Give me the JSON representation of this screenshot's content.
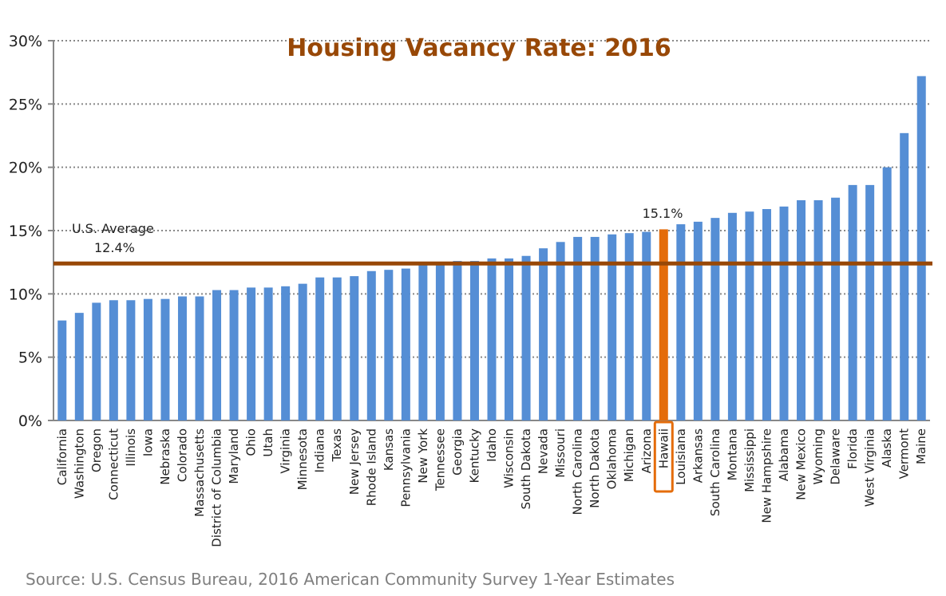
{
  "chart_data": {
    "type": "bar",
    "title": "Housing Vacancy Rate: 2016",
    "source": "Source: U.S. Census Bureau, 2016 American Community Survey 1-Year Estimates",
    "ylim": [
      0,
      30
    ],
    "yticks": [
      "0%",
      "5%",
      "10%",
      "15%",
      "20%",
      "25%",
      "30%"
    ],
    "grid": true,
    "categories": [
      "California",
      "Washington",
      "Oregon",
      "Connecticut",
      "Illinois",
      "Iowa",
      "Nebraska",
      "Colorado",
      "Massachusetts",
      "District of Columbia",
      "Maryland",
      "Ohio",
      "Utah",
      "Virginia",
      "Minnesota",
      "Indiana",
      "Texas",
      "New Jersey",
      "Rhode Island",
      "Kansas",
      "Pennsylvania",
      "New York",
      "Tennessee",
      "Georgia",
      "Kentucky",
      "Idaho",
      "Wisconsin",
      "South Dakota",
      "Nevada",
      "Missouri",
      "North Carolina",
      "North Dakota",
      "Oklahoma",
      "Michigan",
      "Arizona",
      "Hawaii",
      "Louisiana",
      "Arkansas",
      "South Carolina",
      "Montana",
      "Mississippi",
      "New Hampshire",
      "Alabama",
      "New Mexico",
      "Wyoming",
      "Delaware",
      "Florida",
      "West Virginia",
      "Alaska",
      "Vermont",
      "Maine"
    ],
    "values": [
      7.9,
      8.5,
      9.3,
      9.5,
      9.5,
      9.6,
      9.6,
      9.8,
      9.8,
      10.3,
      10.3,
      10.5,
      10.5,
      10.6,
      10.8,
      11.3,
      11.3,
      11.4,
      11.8,
      11.9,
      12.0,
      12.3,
      12.3,
      12.6,
      12.6,
      12.8,
      12.8,
      13.0,
      13.6,
      14.1,
      14.5,
      14.5,
      14.7,
      14.8,
      14.9,
      15.1,
      15.5,
      15.7,
      16.0,
      16.4,
      16.5,
      16.7,
      16.9,
      17.4,
      17.4,
      17.6,
      18.6,
      18.6,
      20.0,
      22.7,
      27.2
    ],
    "highlight": {
      "category": "Hawaii",
      "label": "15.1%"
    },
    "average": {
      "value": 12.4,
      "label_line1": "U.S. Average",
      "label_line2": "12.4%"
    },
    "colors": {
      "bar": "#558ED5",
      "highlight": "#E46C0A",
      "average_line": "#984807",
      "title": "#984807",
      "source": "#7F7F7F"
    }
  }
}
